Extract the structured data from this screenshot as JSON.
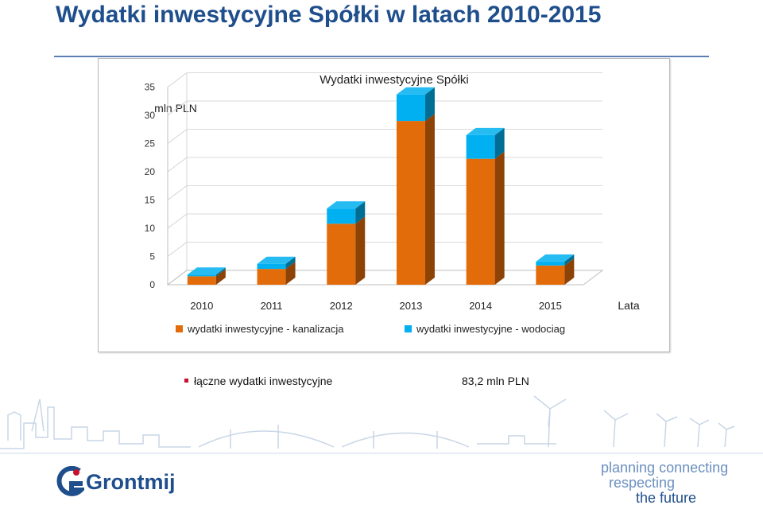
{
  "slide": {
    "title": "Wydatki inwestycyjne Spółki w latach 2010-2015"
  },
  "chart_data": {
    "type": "bar",
    "stacked": true,
    "three_d": true,
    "title": "Wydatki inwestycyjne Spółki",
    "ylabel": "mln PLN",
    "xlabel": "Lata",
    "categories": [
      "2010",
      "2011",
      "2012",
      "2013",
      "2014",
      "2015"
    ],
    "ylim": [
      0,
      35
    ],
    "yticks": [
      0,
      5,
      10,
      15,
      20,
      25,
      30,
      35
    ],
    "series": [
      {
        "name": "wydatki inwestycyjne - kanalizacja",
        "color": "#e36c0a",
        "values": [
          1.5,
          2.8,
          10.8,
          29.0,
          22.3,
          3.4
        ]
      },
      {
        "name": "wydatki inwestycyjne - wodociag",
        "color": "#00b0f0",
        "values": [
          0.3,
          0.9,
          2.7,
          4.7,
          4.2,
          0.7
        ]
      }
    ],
    "legend": "bottom",
    "grid": true
  },
  "summary": {
    "label": "łączne wydatki inwestycyjne",
    "value": "83,2 mln PLN"
  },
  "branding": {
    "logo_text": "Grontmij",
    "tagline": [
      "planning connecting",
      "respecting",
      "the future"
    ],
    "brand_color": "#1f4e8c"
  }
}
